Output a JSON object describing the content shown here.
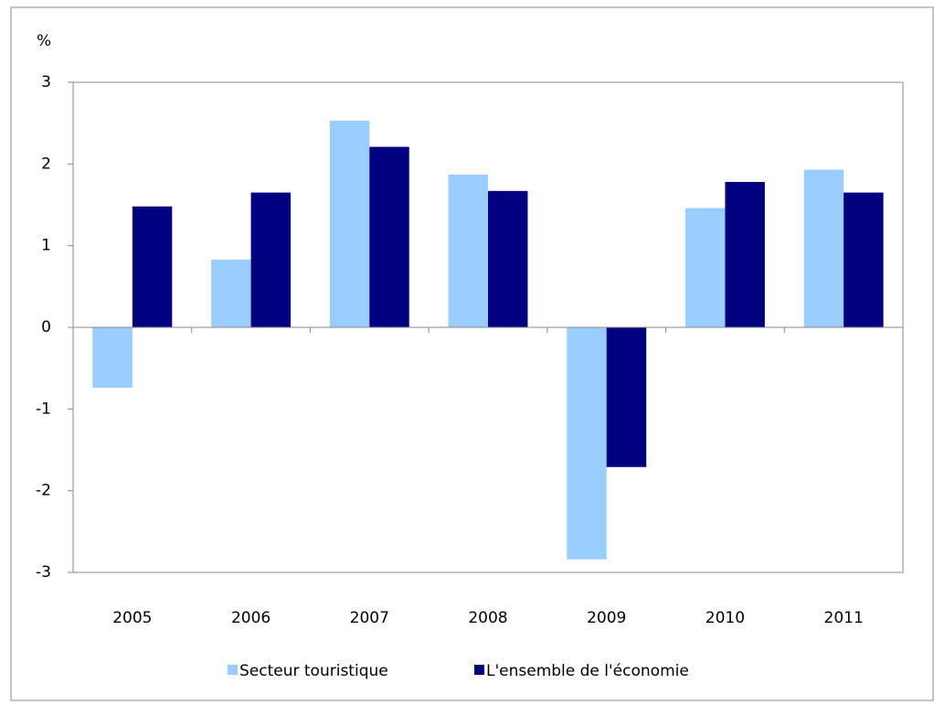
{
  "chart_data": {
    "type": "bar",
    "y_axis_label": "%",
    "categories": [
      "2005",
      "2006",
      "2007",
      "2008",
      "2009",
      "2010",
      "2011"
    ],
    "series": [
      {
        "name": "Secteur touristique",
        "color": "#99ccff",
        "values": [
          -0.74,
          0.83,
          2.53,
          1.87,
          -2.84,
          1.46,
          1.93
        ]
      },
      {
        "name": "L'ensemble de l'économie",
        "color": "#000080",
        "values": [
          1.48,
          1.65,
          2.21,
          1.67,
          -1.71,
          1.78,
          1.65
        ]
      }
    ],
    "ylim": [
      -3,
      3
    ],
    "yticks": [
      -3,
      -2,
      -1,
      0,
      1,
      2,
      3
    ],
    "grid": false,
    "legend": "bottom"
  }
}
